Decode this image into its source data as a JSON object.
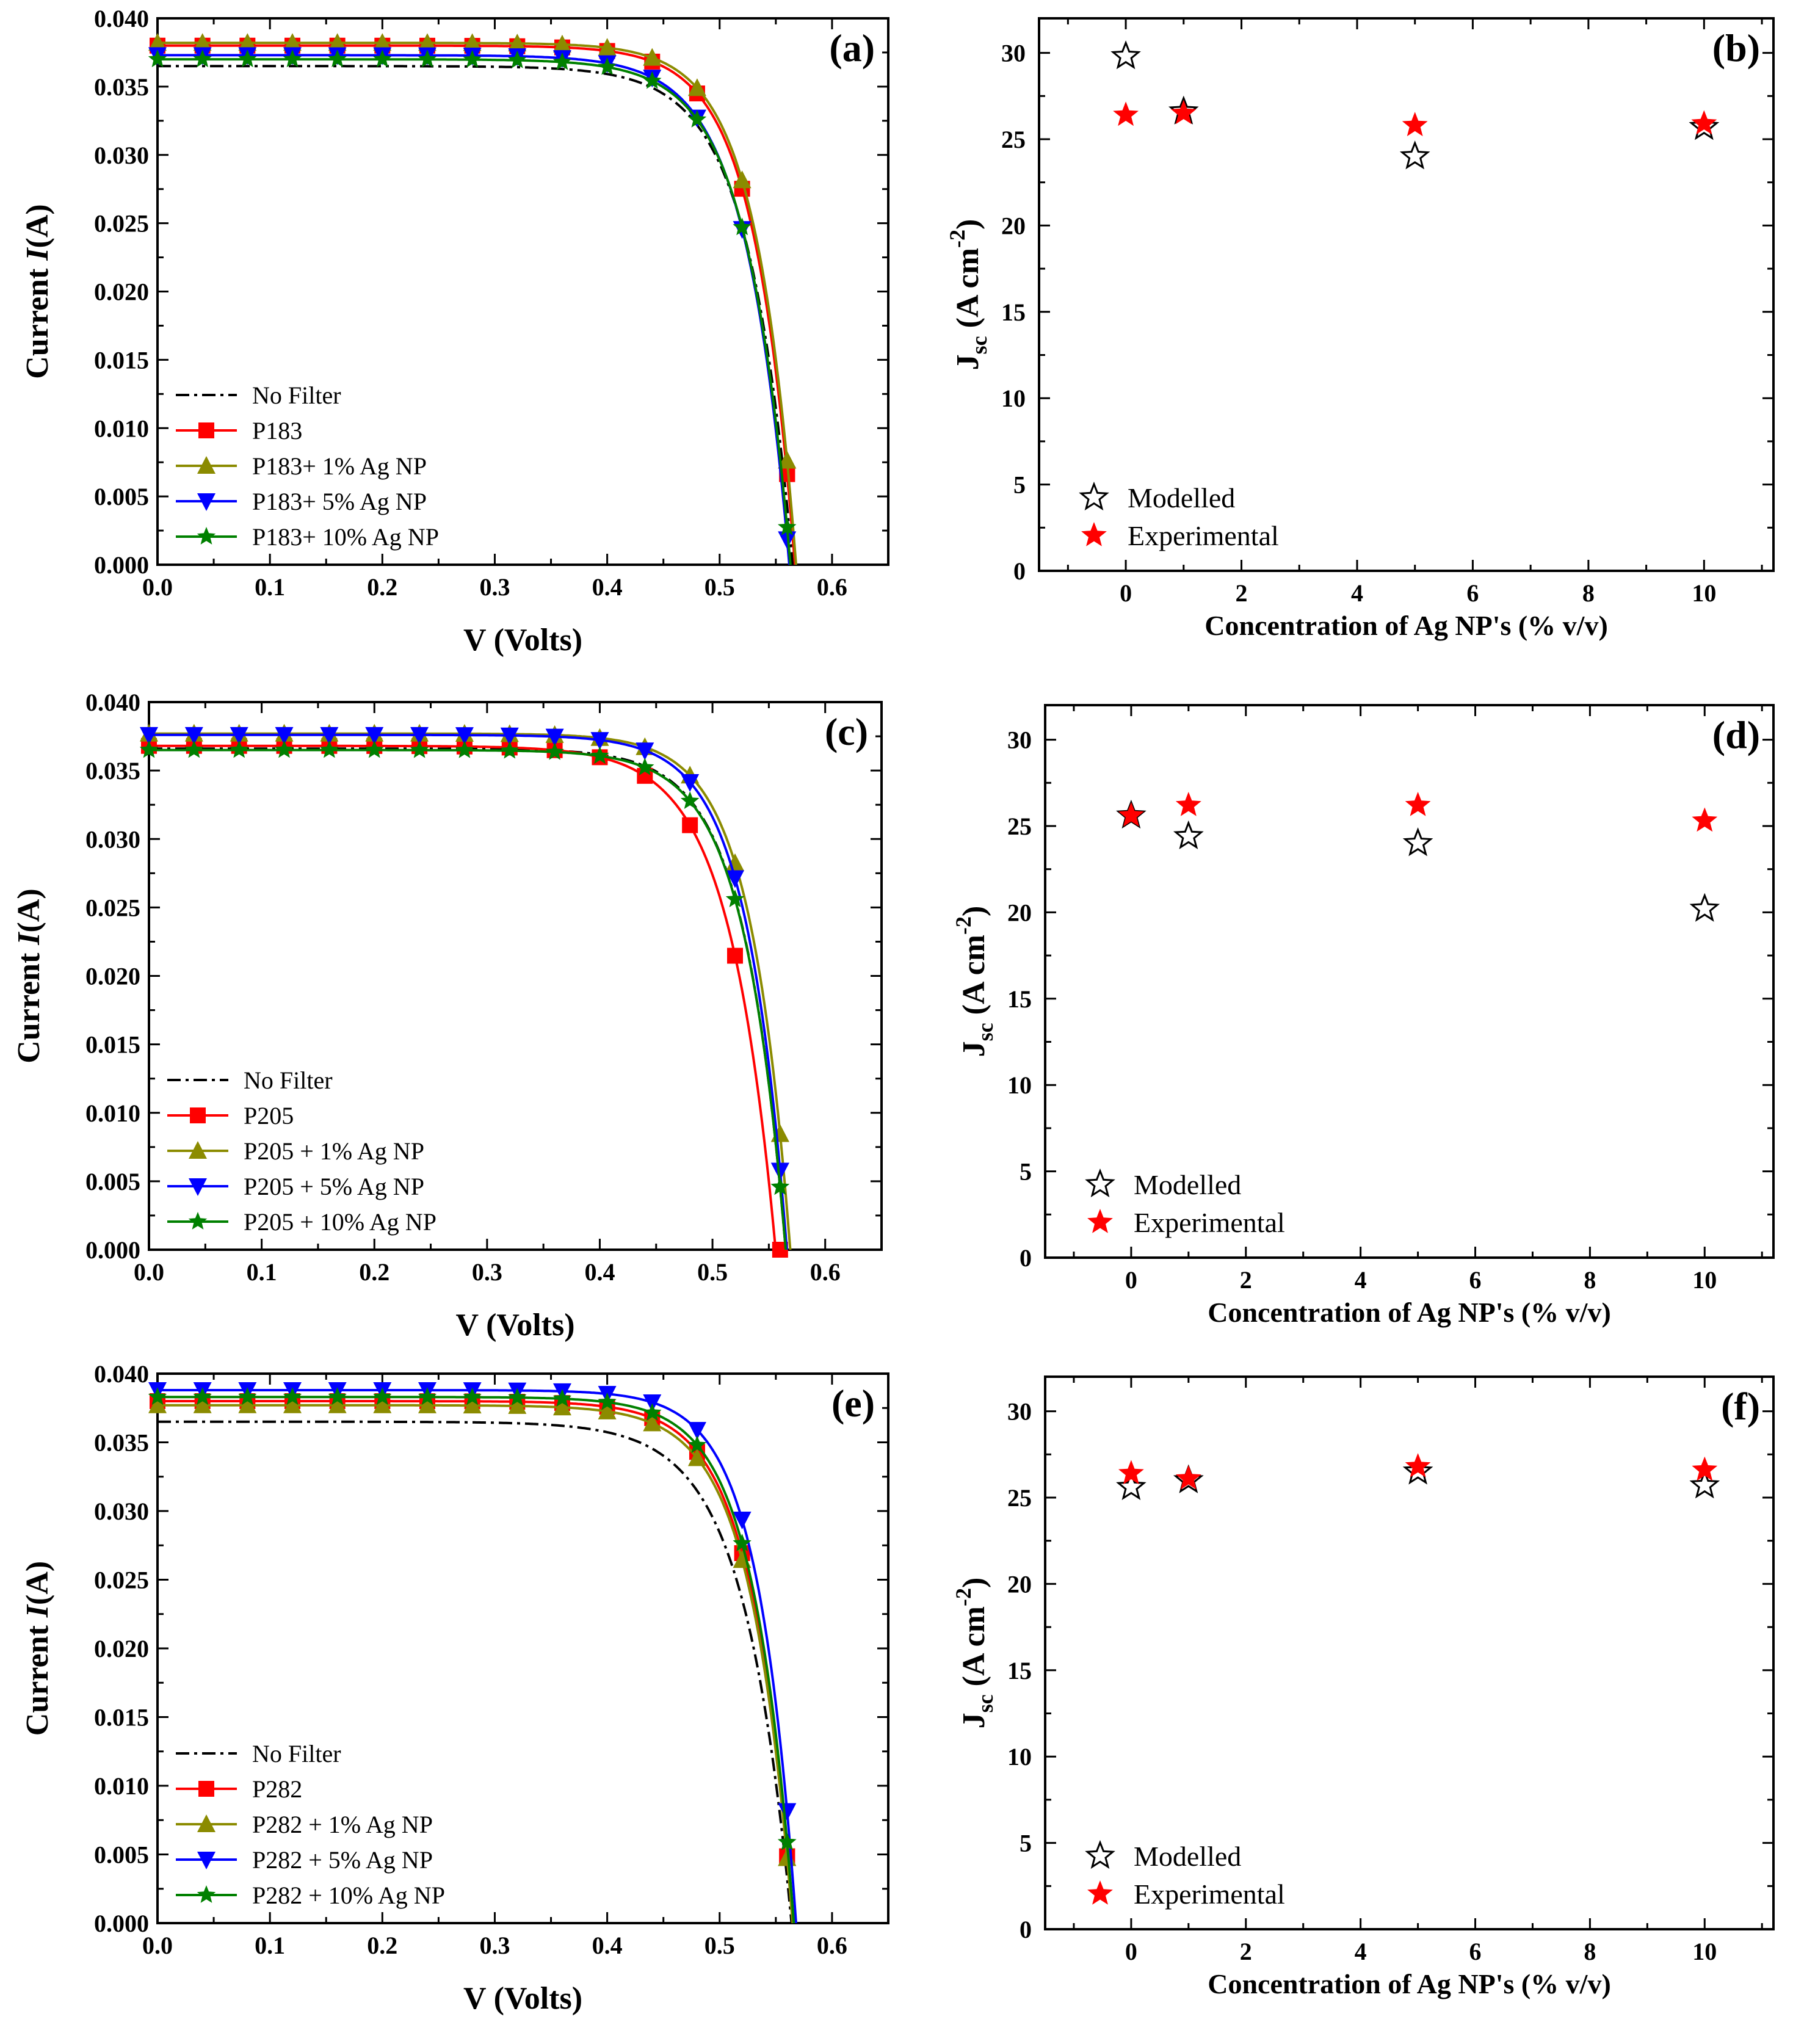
{
  "figure": {
    "panels": [
      {
        "id": "a",
        "panel_label": "(a)",
        "chart_data": {
          "type": "line",
          "xlabel": "V (Volts)",
          "ylabel_pre": "Current ",
          "ylabel_italic": "I",
          "ylabel_post": "(A)",
          "xlim": [
            0,
            0.65
          ],
          "ylim": [
            0,
            0.04
          ],
          "xticks": [
            "0.0",
            "0.1",
            "0.2",
            "0.3",
            "0.4",
            "0.5",
            "0.6"
          ],
          "yticks": [
            "0.000",
            "0.005",
            "0.010",
            "0.015",
            "0.020",
            "0.025",
            "0.030",
            "0.035",
            "0.040"
          ],
          "series": [
            {
              "name": "No Filter",
              "color": "#000000",
              "dash": "dashdot",
              "marker": "none",
              "isc": 0.0365,
              "voc": 0.565,
              "n": 1.55
            },
            {
              "name": "P183",
              "color": "#ff0000",
              "marker": "square",
              "isc": 0.038,
              "voc": 0.567,
              "n": 1.42
            },
            {
              "name": "P183+ 1% Ag NP",
              "color": "#8b8b00",
              "marker": "triangle-up",
              "isc": 0.0382,
              "voc": 0.568,
              "n": 1.4
            },
            {
              "name": "P183+ 5% Ag NP",
              "color": "#0000ff",
              "marker": "triangle-down",
              "isc": 0.0373,
              "voc": 0.562,
              "n": 1.52
            },
            {
              "name": "P183+ 10% Ag NP",
              "color": "#008000",
              "marker": "star",
              "isc": 0.037,
              "voc": 0.563,
              "n": 1.52
            }
          ]
        }
      },
      {
        "id": "b",
        "panel_label": "(b)",
        "chart_data": {
          "type": "scatter",
          "xlabel": "Concentration of Ag NP's (% v/v)",
          "ylabel_main": "J",
          "ylabel_sub": "sc",
          "ylabel_unit": " (A cm",
          "ylabel_sup": "-2",
          "ylabel_close": ")",
          "xlim": [
            -1.5,
            11.2
          ],
          "ylim": [
            0,
            32
          ],
          "xticks": [
            "0",
            "2",
            "4",
            "6",
            "8",
            "10"
          ],
          "yticks": [
            "0",
            "5",
            "10",
            "15",
            "20",
            "25",
            "30"
          ],
          "x": [
            0,
            1,
            5,
            10
          ],
          "series": [
            {
              "name": "Modelled",
              "marker": "star-open",
              "color": "#000000",
              "values": [
                29.8,
                26.6,
                24.0,
                25.7
              ]
            },
            {
              "name": "Experimental",
              "marker": "star-filled",
              "color": "#ff0000",
              "values": [
                26.4,
                26.5,
                25.8,
                25.9
              ]
            }
          ]
        }
      },
      {
        "id": "c",
        "panel_label": "(c)",
        "chart_data": {
          "type": "line",
          "xlabel": "V (Volts)",
          "ylabel_pre": "Current ",
          "ylabel_italic": "I",
          "ylabel_post": "(A)",
          "xlim": [
            0,
            0.65
          ],
          "ylim": [
            0,
            0.04
          ],
          "xticks": [
            "0.0",
            "0.1",
            "0.2",
            "0.3",
            "0.4",
            "0.5",
            "0.6"
          ],
          "yticks": [
            "0.000",
            "0.005",
            "0.010",
            "0.015",
            "0.020",
            "0.025",
            "0.030",
            "0.035",
            "0.040"
          ],
          "series": [
            {
              "name": "No Filter",
              "color": "#000000",
              "dash": "dashdot",
              "marker": "none",
              "isc": 0.0366,
              "voc": 0.565,
              "n": 1.45
            },
            {
              "name": "P205",
              "color": "#ff0000",
              "marker": "square",
              "isc": 0.0368,
              "voc": 0.556,
              "n": 1.6
            },
            {
              "name": "P205 + 1% Ag NP",
              "color": "#8b8b00",
              "marker": "triangle-up",
              "isc": 0.0377,
              "voc": 0.569,
              "n": 1.38
            },
            {
              "name": "P205 + 5% Ag NP",
              "color": "#0000ff",
              "marker": "triangle-down",
              "isc": 0.0376,
              "voc": 0.566,
              "n": 1.4
            },
            {
              "name": "P205 + 10% Ag NP",
              "color": "#008000",
              "marker": "star",
              "isc": 0.0365,
              "voc": 0.565,
              "n": 1.45
            }
          ]
        }
      },
      {
        "id": "d",
        "panel_label": "(d)",
        "chart_data": {
          "type": "scatter",
          "xlabel": "Concentration of Ag NP's (% v/v)",
          "ylabel_main": "J",
          "ylabel_sub": "sc",
          "ylabel_unit": " (A cm",
          "ylabel_sup": "-2",
          "ylabel_close": ")",
          "xlim": [
            -1.5,
            11.2
          ],
          "ylim": [
            0,
            32
          ],
          "xticks": [
            "0",
            "2",
            "4",
            "6",
            "8",
            "10"
          ],
          "yticks": [
            "0",
            "5",
            "10",
            "15",
            "20",
            "25",
            "30"
          ],
          "x": [
            0,
            1,
            5,
            10
          ],
          "series": [
            {
              "name": "Modelled",
              "marker": "star-open",
              "color": "#000000",
              "values": [
                25.6,
                24.4,
                24.0,
                20.2
              ]
            },
            {
              "name": "Experimental",
              "marker": "star-filled",
              "color": "#ff0000",
              "values": [
                25.6,
                26.2,
                26.2,
                25.3
              ]
            }
          ]
        }
      },
      {
        "id": "e",
        "panel_label": "(e)",
        "chart_data": {
          "type": "line",
          "xlabel": "V (Volts)",
          "ylabel_pre": "Current ",
          "ylabel_italic": "I",
          "ylabel_post": "(A)",
          "xlim": [
            0,
            0.65
          ],
          "ylim": [
            0,
            0.04
          ],
          "xticks": [
            "0.0",
            "0.1",
            "0.2",
            "0.3",
            "0.4",
            "0.5",
            "0.6"
          ],
          "yticks": [
            "0.000",
            "0.005",
            "0.010",
            "0.015",
            "0.020",
            "0.025",
            "0.030",
            "0.035",
            "0.040"
          ],
          "series": [
            {
              "name": "No Filter",
              "color": "#000000",
              "dash": "dashdot",
              "marker": "none",
              "isc": 0.0365,
              "voc": 0.564,
              "n": 1.65
            },
            {
              "name": "P282",
              "color": "#ff0000",
              "marker": "square",
              "isc": 0.038,
              "voc": 0.565,
              "n": 1.42
            },
            {
              "name": "P282 + 1% Ag NP",
              "color": "#8b8b00",
              "marker": "triangle-up",
              "isc": 0.0377,
              "voc": 0.565,
              "n": 1.45
            },
            {
              "name": "P282 + 5% Ag NP",
              "color": "#0000ff",
              "marker": "triangle-down",
              "isc": 0.0388,
              "voc": 0.568,
              "n": 1.32
            },
            {
              "name": "P282 + 10% Ag NP",
              "color": "#008000",
              "marker": "star",
              "isc": 0.0383,
              "voc": 0.566,
              "n": 1.4
            }
          ]
        }
      },
      {
        "id": "f",
        "panel_label": "(f)",
        "chart_data": {
          "type": "scatter",
          "xlabel": "Concentration of Ag NP's (% v/v)",
          "ylabel_main": "J",
          "ylabel_sub": "sc",
          "ylabel_unit": " (A cm",
          "ylabel_sup": "-2",
          "ylabel_close": ")",
          "xlim": [
            -1.5,
            11.2
          ],
          "ylim": [
            0,
            32
          ],
          "xticks": [
            "0",
            "2",
            "4",
            "6",
            "8",
            "10"
          ],
          "yticks": [
            "0",
            "5",
            "10",
            "15",
            "20",
            "25",
            "30"
          ],
          "x": [
            0,
            1,
            5,
            10
          ],
          "series": [
            {
              "name": "Modelled",
              "marker": "star-open",
              "color": "#000000",
              "values": [
                25.6,
                26.0,
                26.5,
                25.7
              ]
            },
            {
              "name": "Experimental",
              "marker": "star-filled",
              "color": "#ff0000",
              "values": [
                26.4,
                26.1,
                26.8,
                26.6
              ]
            }
          ]
        }
      }
    ]
  }
}
